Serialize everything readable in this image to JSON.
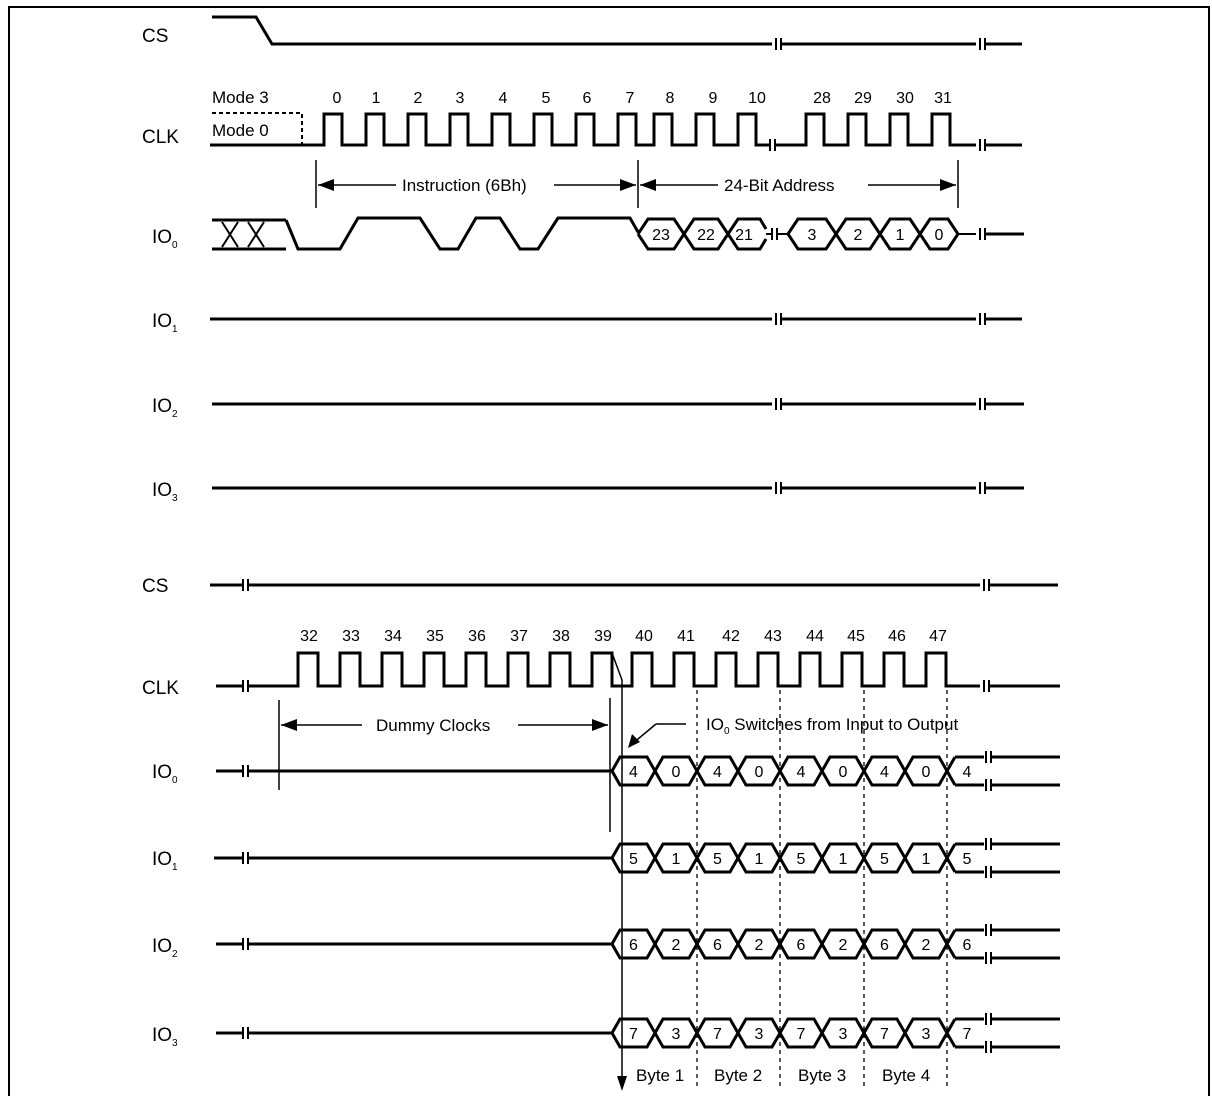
{
  "signals_top": [
    "CS",
    "CLK",
    "IO",
    "IO",
    "IO",
    "IO"
  ],
  "signals_top_sub": [
    "",
    "",
    "0",
    "1",
    "2",
    "3"
  ],
  "signals_bottom": [
    "CS",
    "CLK",
    "IO",
    "IO",
    "IO",
    "IO"
  ],
  "signals_bottom_sub": [
    "",
    "",
    "0",
    "1",
    "2",
    "3"
  ],
  "modes": [
    "Mode 3",
    "Mode 0"
  ],
  "clk_numbers_top": [
    "0",
    "1",
    "2",
    "3",
    "4",
    "5",
    "6",
    "7",
    "8",
    "9",
    "10",
    "28",
    "29",
    "30",
    "31"
  ],
  "clk_numbers_bottom": [
    "32",
    "33",
    "34",
    "35",
    "36",
    "37",
    "38",
    "39",
    "40",
    "41",
    "42",
    "43",
    "44",
    "45",
    "46",
    "47"
  ],
  "annotations": {
    "instruction": "Instruction (6Bh)",
    "address": "24-Bit Address",
    "dummy": "Dummy Clocks",
    "switch_prefix": "IO",
    "switch_sub": "0",
    "switch_suffix": " Switches from Input to Output"
  },
  "address_bits": [
    "23",
    "22",
    "21",
    "3",
    "2",
    "1",
    "0"
  ],
  "data_bits": {
    "io0": [
      "4",
      "0",
      "4",
      "0",
      "4",
      "0",
      "4",
      "0",
      "4"
    ],
    "io1": [
      "5",
      "1",
      "5",
      "1",
      "5",
      "1",
      "5",
      "1",
      "5"
    ],
    "io2": [
      "6",
      "2",
      "6",
      "2",
      "6",
      "2",
      "6",
      "2",
      "6"
    ],
    "io3": [
      "7",
      "3",
      "7",
      "3",
      "7",
      "3",
      "7",
      "3",
      "7"
    ]
  },
  "bytes": [
    "Byte 1",
    "Byte 2",
    "Byte 3",
    "Byte 4"
  ]
}
